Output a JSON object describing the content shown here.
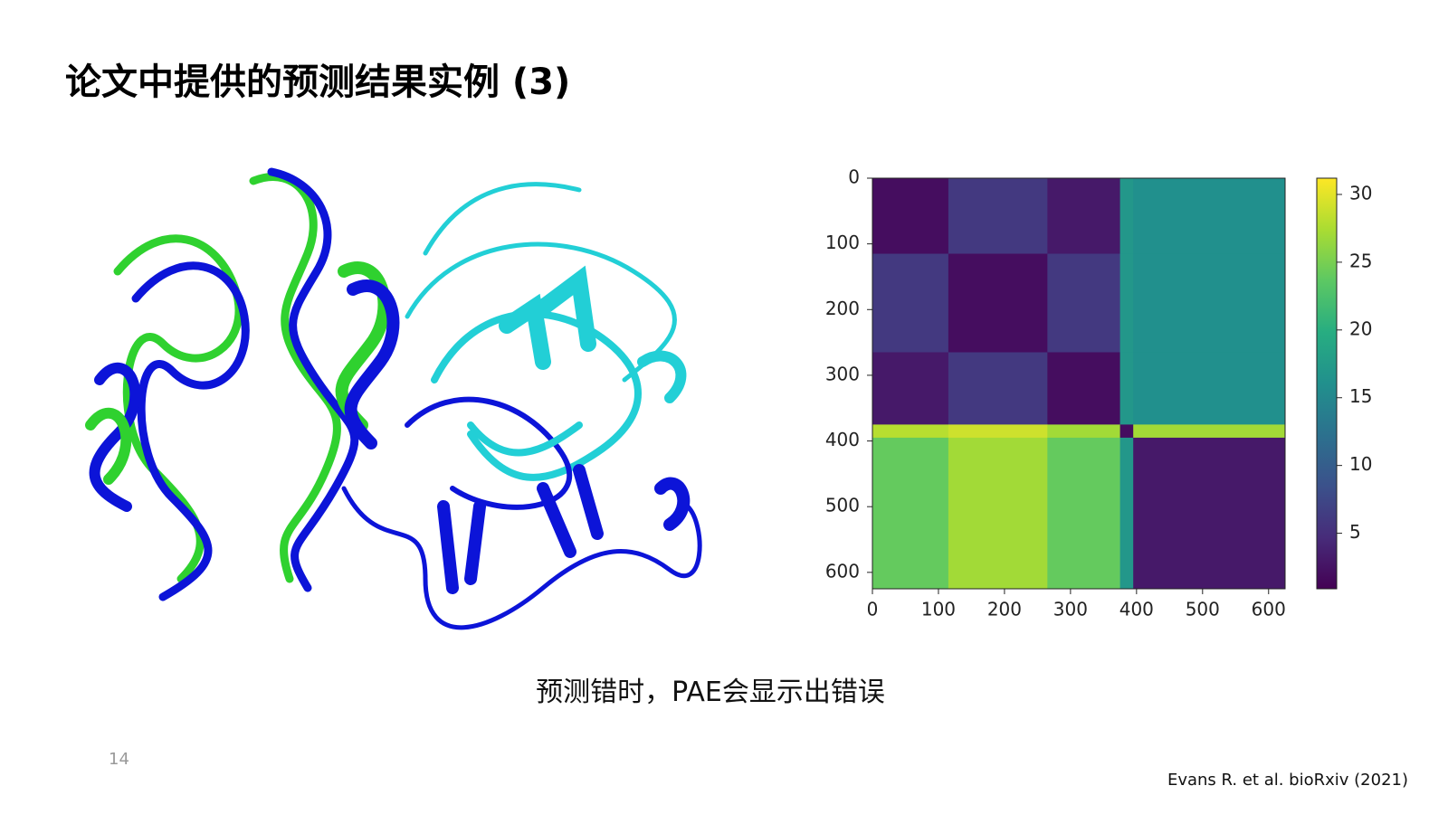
{
  "slide": {
    "title": "论文中提供的预测结果实例 (3)",
    "caption": "预测错时，PAE会显示出错误",
    "page_number": "14",
    "citation": "Evans R. et al. bioRxiv (2021)"
  },
  "chart_data": {
    "type": "heatmap",
    "xbins": [
      0,
      115,
      265,
      375,
      395,
      625
    ],
    "ybins": [
      0,
      115,
      265,
      375,
      395,
      625
    ],
    "values": [
      [
        2,
        6,
        3,
        17,
        16
      ],
      [
        6,
        2,
        6,
        17,
        16
      ],
      [
        3,
        6,
        2,
        17,
        16
      ],
      [
        28,
        29,
        27,
        2,
        27
      ],
      [
        24,
        27,
        24,
        17,
        3
      ]
    ],
    "xlim": [
      0,
      625
    ],
    "ylim": [
      625,
      0
    ],
    "xticks": [
      0,
      100,
      200,
      300,
      400,
      500,
      600
    ],
    "yticks": [
      0,
      100,
      200,
      300,
      400,
      500,
      600
    ],
    "colormap": "viridis",
    "clim": [
      0.9,
      31.2
    ],
    "colorbar_ticks": [
      5,
      10,
      15,
      20,
      25,
      30
    ]
  }
}
